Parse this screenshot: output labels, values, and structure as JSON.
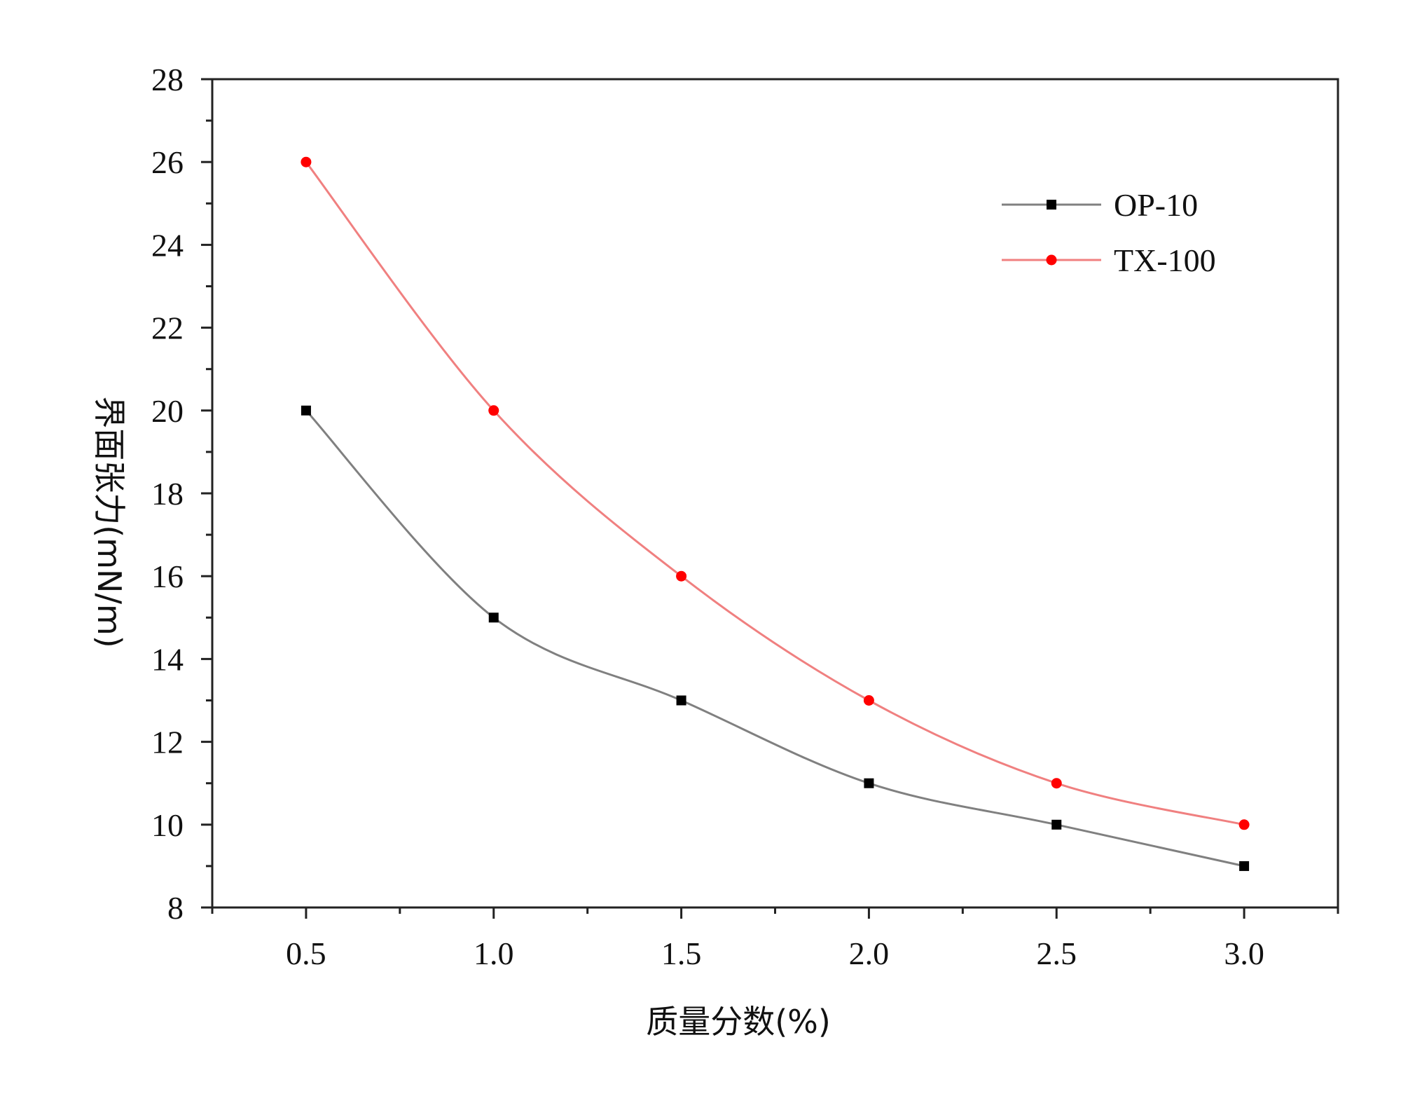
{
  "chart_data": {
    "type": "line",
    "title": "",
    "xlabel": "质量分数(%)",
    "ylabel": "界面张力(mN/m)",
    "x": [
      0.5,
      1.0,
      1.5,
      2.0,
      2.5,
      3.0
    ],
    "x_tick_labels": [
      "0.5",
      "1.0",
      "1.5",
      "2.0",
      "2.5",
      "3.0"
    ],
    "y_tick_labels": [
      "8",
      "10",
      "12",
      "14",
      "16",
      "18",
      "20",
      "22",
      "24",
      "26",
      "28"
    ],
    "xlim": [
      0.25,
      3.25
    ],
    "ylim": [
      8,
      28
    ],
    "grid": false,
    "legend_position": "top-right",
    "series": [
      {
        "name": "OP-10",
        "color": "#808080",
        "marker_color": "#000000",
        "marker": "square",
        "values": [
          20,
          15,
          13,
          11,
          10,
          9
        ]
      },
      {
        "name": "TX-100",
        "color": "#f08080",
        "marker_color": "#ff0000",
        "marker": "circle",
        "values": [
          26,
          20,
          16,
          13,
          11,
          10
        ]
      }
    ]
  }
}
